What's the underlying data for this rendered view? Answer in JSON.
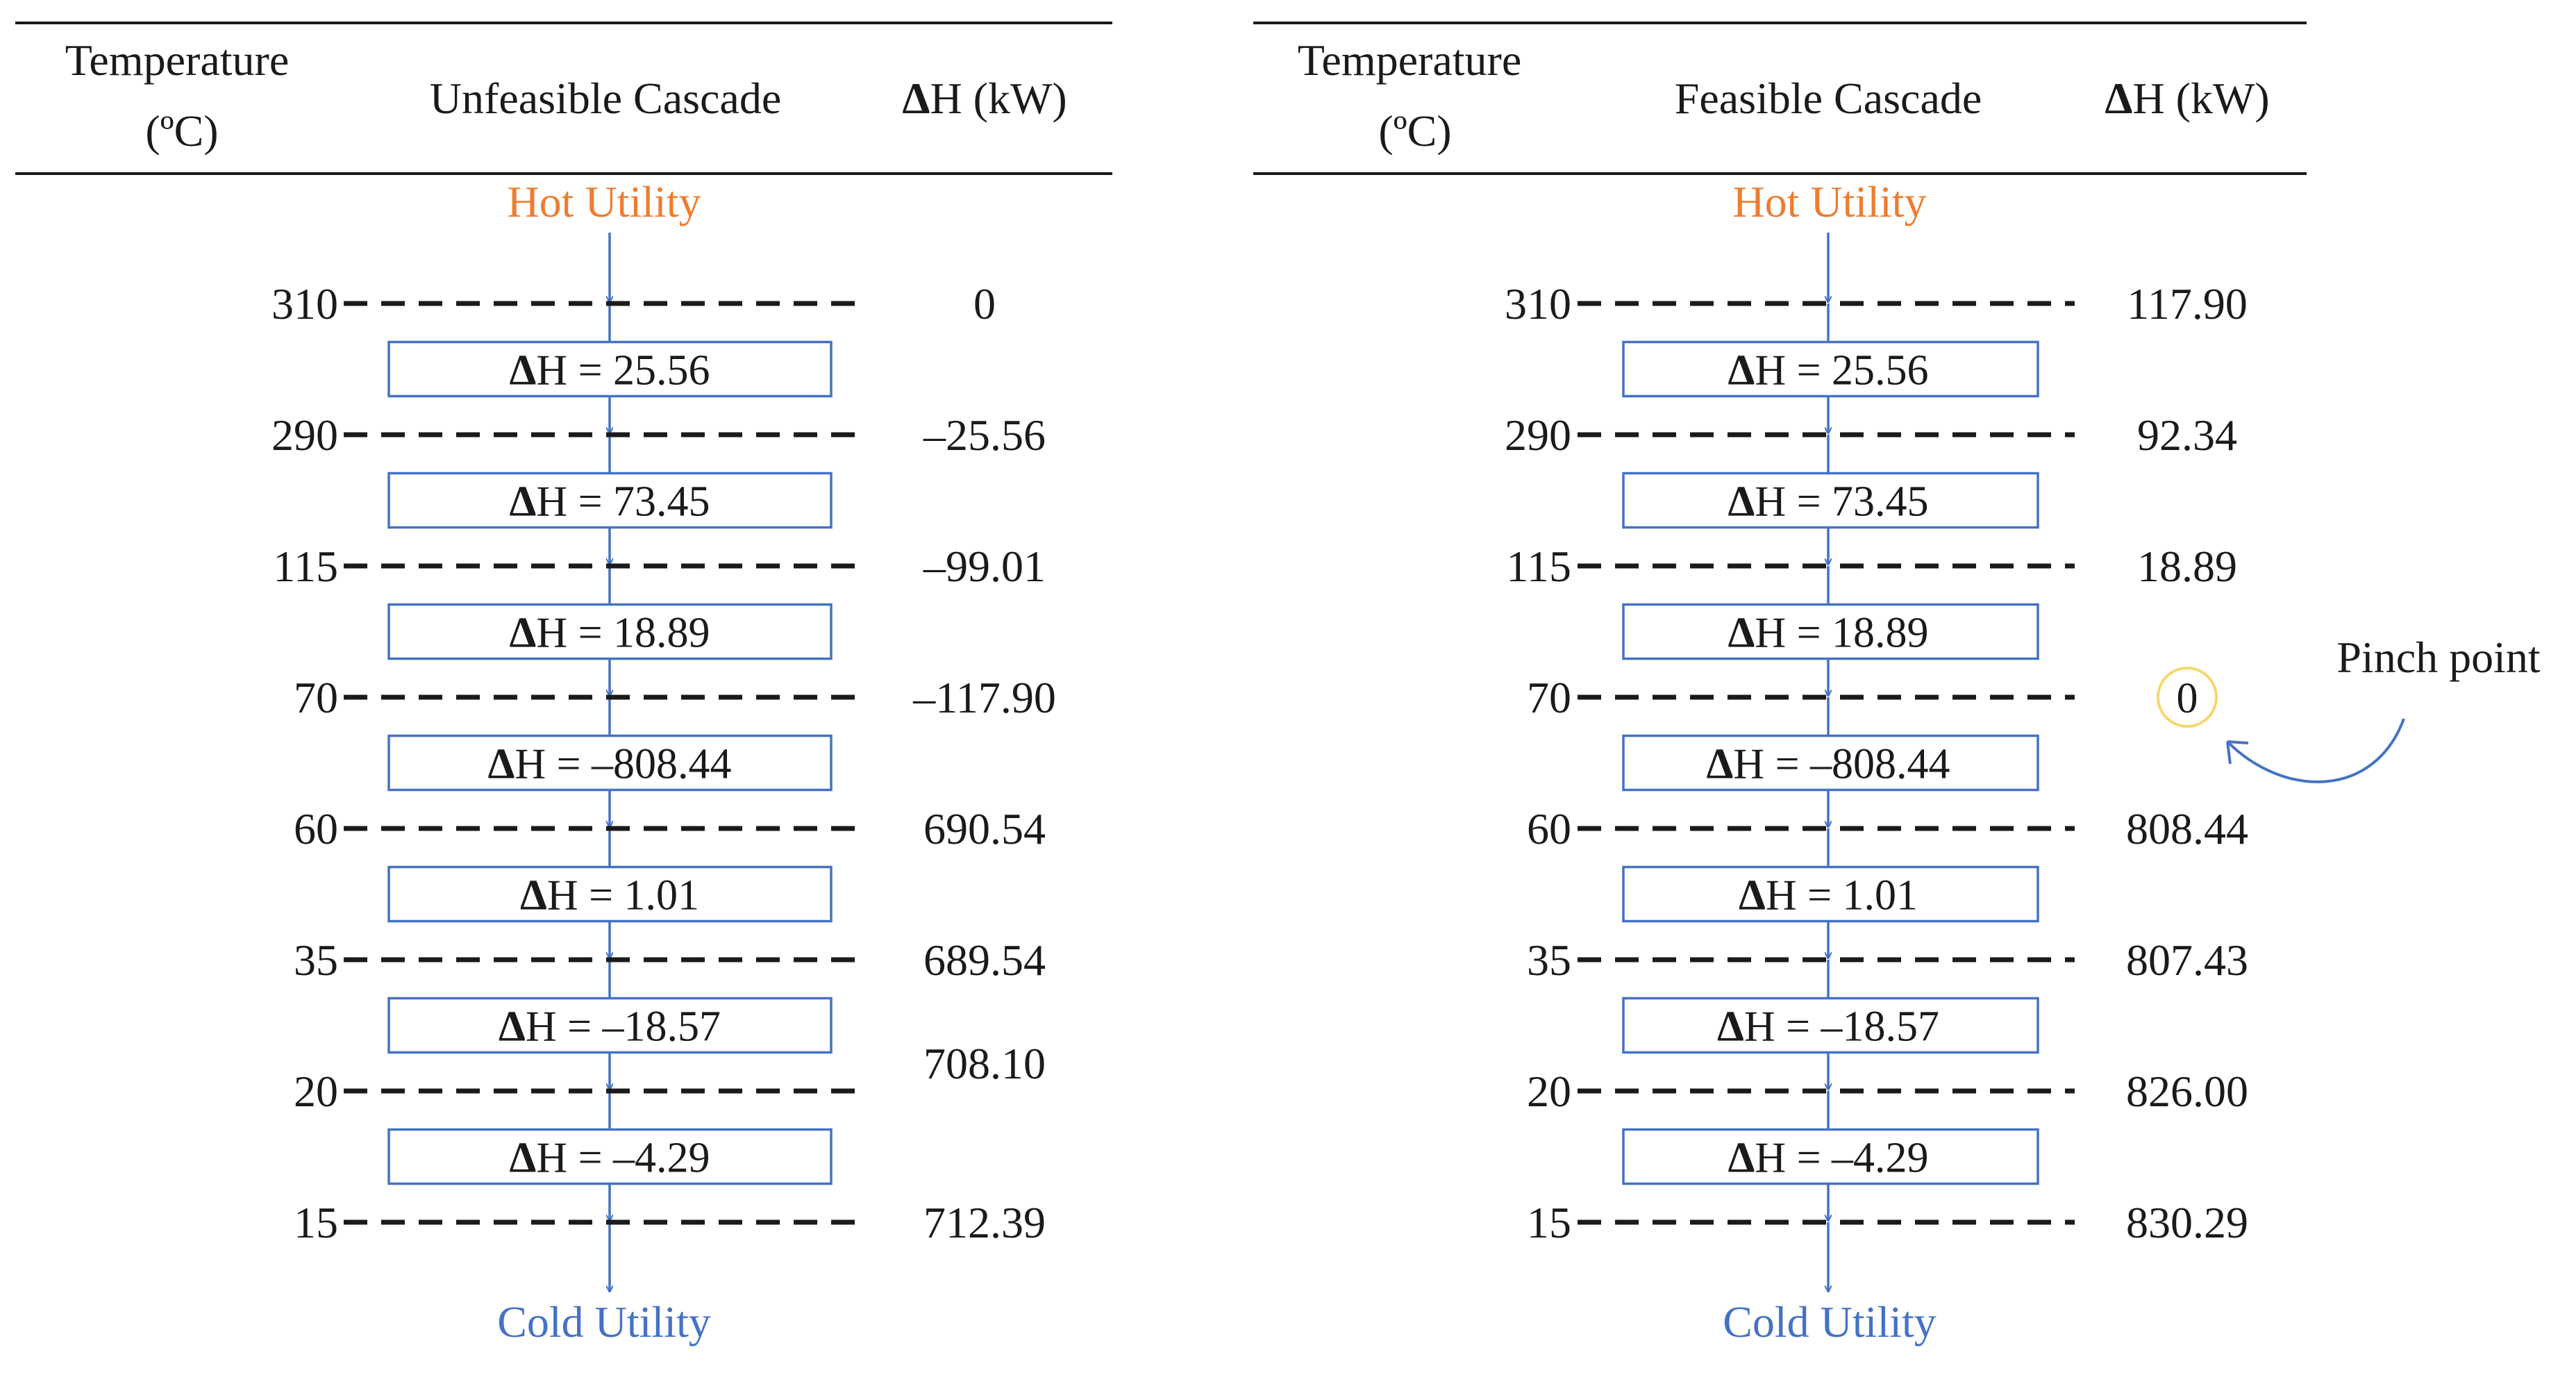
{
  "colors": {
    "hot": "#ED7D31",
    "cold": "#4472C4",
    "box": "#4472C4",
    "pinch_circle": "#F5D76E",
    "ink": "#1a1a1a"
  },
  "delta_symbol": "Δ",
  "panels": [
    {
      "id": "unfeasible",
      "header": {
        "temperature_line1": "Temperature",
        "temperature_line2": "(ºC)",
        "title": "Unfeasible Cascade",
        "dh_label": "H (kW)"
      },
      "hot_utility": "Hot Utility",
      "cold_utility": "Cold Utility",
      "temperatures": [
        "310",
        "290",
        "115",
        "70",
        "60",
        "35",
        "20",
        "15"
      ],
      "boxes": [
        "= 25.56",
        "= 73.45",
        "= 18.89",
        "= –808.44",
        "= 1.01",
        "= –18.57",
        "= –4.29"
      ],
      "cascade_values": [
        "0",
        "–25.56",
        "–99.01",
        "–117.90",
        "690.54",
        "689.54",
        "708.10",
        "712.39"
      ]
    },
    {
      "id": "feasible",
      "header": {
        "temperature_line1": "Temperature",
        "temperature_line2": "(ºC)",
        "title": "Feasible Cascade",
        "dh_label": "H (kW)"
      },
      "hot_utility": "Hot Utility",
      "cold_utility": "Cold Utility",
      "temperatures": [
        "310",
        "290",
        "115",
        "70",
        "60",
        "35",
        "20",
        "15"
      ],
      "boxes": [
        "= 25.56",
        "= 73.45",
        "= 18.89",
        "= –808.44",
        "= 1.01",
        "= –18.57",
        "= –4.29"
      ],
      "cascade_values": [
        "117.90",
        "92.34",
        "18.89",
        "0",
        "808.44",
        "807.43",
        "826.00",
        "830.29"
      ],
      "pinch_index": 3,
      "pinch_label": "Pinch point"
    }
  ]
}
